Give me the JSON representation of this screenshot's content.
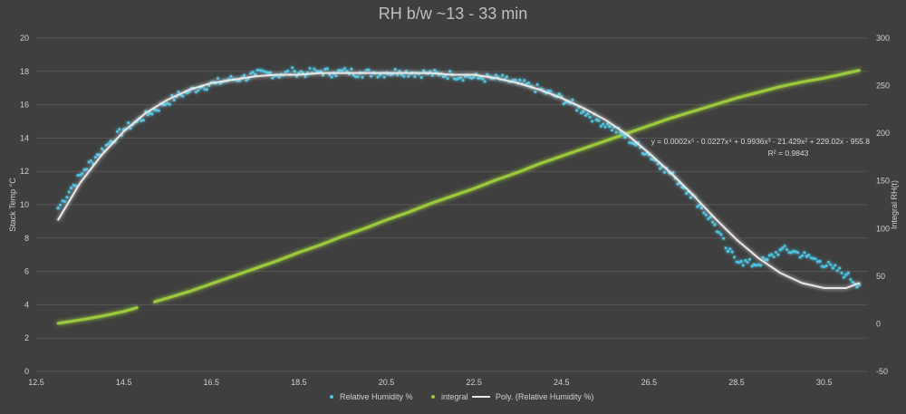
{
  "chart_data": {
    "type": "scatter",
    "title": "RH b/w ~13 - 33 min",
    "xlabel": "",
    "ylabel": "Stack Temp °C",
    "y2label": "Integral RH(t)",
    "xlim": [
      12.5,
      31.5
    ],
    "ylim": [
      0,
      20
    ],
    "y2lim": [
      -50,
      300
    ],
    "x_ticks": [
      "12.5",
      "14.5",
      "16.5",
      "18.5",
      "20.5",
      "22.5",
      "24.5",
      "26.5",
      "28.5",
      "30.5"
    ],
    "y_ticks": [
      "0",
      "2",
      "4",
      "6",
      "8",
      "10",
      "12",
      "14",
      "16",
      "18",
      "20"
    ],
    "y2_ticks": [
      "-50",
      "0",
      "50",
      "100",
      "150",
      "200",
      "250",
      "300"
    ],
    "grid": true,
    "legend_position": "bottom",
    "series": [
      {
        "name": "Relative Humidity %",
        "kind": "scatter",
        "axis": "left",
        "color": "#4ec3e0",
        "x": [
          13.0,
          13.3,
          13.6,
          13.9,
          14.2,
          14.5,
          14.8,
          15.1,
          15.4,
          15.7,
          16.0,
          16.3,
          16.6,
          16.9,
          17.2,
          17.5,
          17.8,
          18.1,
          18.4,
          18.7,
          19.0,
          19.3,
          19.6,
          19.9,
          20.2,
          20.5,
          20.8,
          21.1,
          21.4,
          21.7,
          22.0,
          22.3,
          22.6,
          22.9,
          23.2,
          23.5,
          23.8,
          24.1,
          24.4,
          24.7,
          25.0,
          25.3,
          25.6,
          25.9,
          26.2,
          26.5,
          26.8,
          27.1,
          27.4,
          27.7,
          28.0,
          28.3,
          28.6,
          28.9,
          29.2,
          29.5,
          29.8,
          30.1,
          30.4,
          30.7,
          31.0,
          31.3
        ],
        "y": [
          9.8,
          11.0,
          12.1,
          13.0,
          13.8,
          14.5,
          15.0,
          15.5,
          16.0,
          16.5,
          16.8,
          17.1,
          17.3,
          17.5,
          17.6,
          17.8,
          17.9,
          17.8,
          18.0,
          17.9,
          18.0,
          17.9,
          18.0,
          17.9,
          17.9,
          17.9,
          18.0,
          17.9,
          17.9,
          17.8,
          17.8,
          17.7,
          17.6,
          17.6,
          17.5,
          17.3,
          17.1,
          16.8,
          16.5,
          16.1,
          15.6,
          15.1,
          14.7,
          14.2,
          13.6,
          13.0,
          12.3,
          11.6,
          10.8,
          9.8,
          8.8,
          7.2,
          6.6,
          6.4,
          6.7,
          7.3,
          7.2,
          6.9,
          6.6,
          6.2,
          5.8,
          5.2
        ]
      },
      {
        "name": "integral",
        "kind": "line",
        "axis": "right",
        "color": "#9bc83c",
        "x": [
          13.0,
          13.5,
          14.0,
          14.5,
          14.8,
          15.2,
          15.5,
          16.0,
          16.5,
          17.0,
          17.5,
          18.0,
          18.5,
          19.0,
          19.5,
          20.0,
          20.5,
          21.0,
          21.5,
          22.0,
          22.5,
          23.0,
          23.5,
          24.0,
          24.5,
          25.0,
          25.5,
          26.0,
          26.5,
          27.0,
          27.5,
          28.0,
          28.5,
          29.0,
          29.5,
          30.0,
          30.5,
          31.0,
          31.3
        ],
        "y": [
          0.5,
          4,
          8,
          13,
          17,
          23,
          27,
          34,
          42,
          50,
          58,
          66,
          75,
          83,
          92,
          100,
          109,
          117,
          126,
          134,
          142,
          151,
          159,
          168,
          176,
          184,
          192,
          200,
          208,
          216,
          223,
          230,
          237,
          243,
          249,
          254,
          258,
          263,
          266
        ]
      },
      {
        "name": "Poly. (Relative Humidity %)",
        "kind": "trendline",
        "axis": "left",
        "color": "#e8e8e8",
        "x": [
          13.0,
          13.5,
          14.0,
          14.5,
          15.0,
          15.5,
          16.0,
          16.5,
          17.0,
          17.5,
          18.0,
          18.5,
          19.0,
          19.5,
          20.0,
          20.5,
          21.0,
          21.5,
          22.0,
          22.5,
          23.0,
          23.5,
          24.0,
          24.5,
          25.0,
          25.5,
          26.0,
          26.5,
          27.0,
          27.5,
          28.0,
          28.5,
          29.0,
          29.5,
          30.0,
          30.5,
          31.0,
          31.3
        ],
        "y": [
          9.1,
          11.3,
          13.0,
          14.4,
          15.5,
          16.3,
          16.9,
          17.3,
          17.5,
          17.7,
          17.8,
          17.8,
          17.9,
          17.9,
          17.9,
          17.9,
          17.9,
          17.9,
          17.8,
          17.8,
          17.6,
          17.3,
          16.9,
          16.4,
          15.8,
          15.1,
          14.2,
          13.1,
          11.9,
          10.6,
          9.2,
          7.9,
          6.8,
          5.9,
          5.3,
          5.0,
          5.0,
          5.3
        ]
      }
    ],
    "annotations": [
      "y = 0.0002x⁵ - 0.0227x⁴ + 0.9936x³ - 21.429x² + 229.02x - 955.8",
      "R² = 0.9843"
    ]
  }
}
